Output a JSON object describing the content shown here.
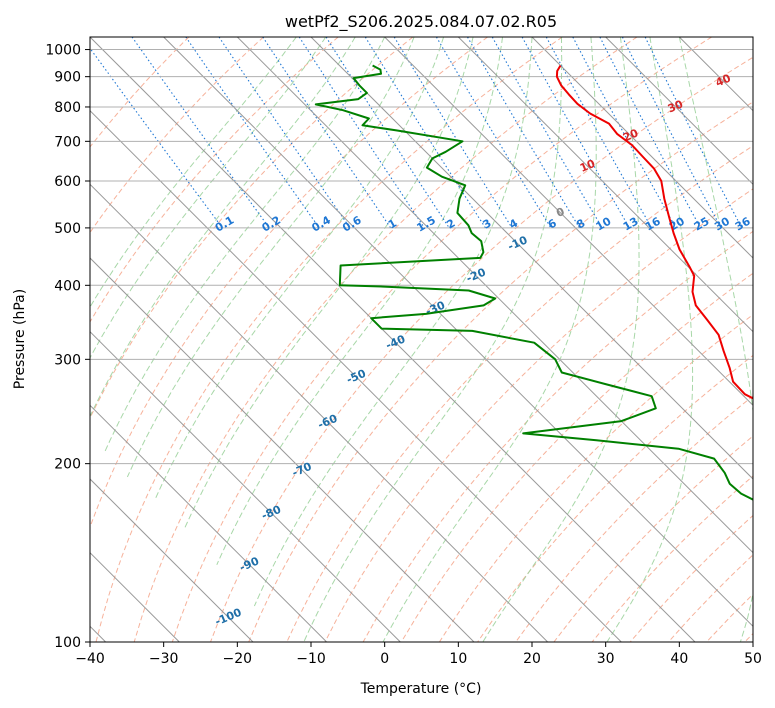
{
  "chart_data": {
    "type": "line",
    "title": "wetPf2_S206.2025.084.07.02.R05",
    "xlabel": "Temperature (°C)",
    "ylabel": "Pressure (hPa)",
    "xlim": [
      -40,
      50
    ],
    "ylim": [
      1050,
      100
    ],
    "y_scale": "log",
    "grid": true,
    "x_ticks": [
      -40,
      -30,
      -20,
      -10,
      0,
      10,
      20,
      30,
      40,
      50
    ],
    "y_ticks": [
      100,
      200,
      300,
      400,
      500,
      600,
      700,
      800,
      900,
      1000
    ],
    "x_tick_labels": [
      "−40",
      "−30",
      "−20",
      "−10",
      "0",
      "10",
      "20",
      "30",
      "40",
      "50"
    ],
    "y_tick_labels": [
      "100",
      "200",
      "300",
      "400",
      "500",
      "600",
      "700",
      "800",
      "900",
      "1000"
    ],
    "colors": {
      "temperature": "#ee0000",
      "dewpoint": "#008000",
      "isotherm": "#999999",
      "dry_adiabat": "#f4a58a",
      "moist_adiabat": "#9fd39f",
      "mixing_ratio": "#1f77d4",
      "isotherm_label": "#1f6fa8",
      "dry_label": "#d62728"
    },
    "isotherm_labels": [
      {
        "t": -100,
        "p": 110,
        "text": "-100"
      },
      {
        "t": -90,
        "p": 135,
        "text": "-90"
      },
      {
        "t": -80,
        "p": 165,
        "text": "-80"
      },
      {
        "t": -70,
        "p": 195,
        "text": "-70"
      },
      {
        "t": -60,
        "p": 235,
        "text": "-60"
      },
      {
        "t": -50,
        "p": 280,
        "text": "-50"
      },
      {
        "t": -40,
        "p": 320,
        "text": "-40"
      },
      {
        "t": -30,
        "p": 365,
        "text": "-30"
      },
      {
        "t": -20,
        "p": 415,
        "text": "-20"
      },
      {
        "t": -10,
        "p": 470,
        "text": "-10"
      },
      {
        "t": 0,
        "p": 530,
        "text": "0"
      },
      {
        "t": 10,
        "p": 635,
        "text": "10"
      },
      {
        "t": 20,
        "p": 715,
        "text": "20"
      },
      {
        "t": 30,
        "p": 800,
        "text": "30"
      },
      {
        "t": 40,
        "p": 885,
        "text": "40"
      }
    ],
    "mixing_ratio_labels": [
      "0.1",
      "0.2",
      "0.4",
      "0.6",
      "1",
      "1.5",
      "2",
      "3",
      "4",
      "6",
      "8",
      "10",
      "13",
      "16",
      "20",
      "25",
      "30",
      "36"
    ],
    "mixing_ratio_values": [
      0.1,
      0.2,
      0.4,
      0.6,
      1,
      1.5,
      2,
      3,
      4,
      6,
      8,
      10,
      13,
      16,
      20,
      25,
      30,
      36
    ],
    "mixing_ratio_label_p": 490,
    "series": [
      {
        "key": "temperature",
        "points": [
          [
            20,
            940
          ],
          [
            18.8,
            920
          ],
          [
            18,
            900
          ],
          [
            17.4,
            870
          ],
          [
            17.2,
            840
          ],
          [
            17.1,
            810
          ],
          [
            17.5,
            780
          ],
          [
            18.7,
            750
          ],
          [
            18.4,
            720
          ],
          [
            18.9,
            690
          ],
          [
            18.8,
            660
          ],
          [
            18.7,
            630
          ],
          [
            18.0,
            600
          ],
          [
            16.0,
            560
          ],
          [
            14.1,
            520
          ],
          [
            12.6,
            490
          ],
          [
            11.2,
            460
          ],
          [
            10.2,
            430
          ],
          [
            9.6,
            415
          ],
          [
            7.2,
            390
          ],
          [
            5.8,
            370
          ],
          [
            5.4,
            350
          ],
          [
            4.9,
            330
          ],
          [
            3.4,
            310
          ],
          [
            1.9,
            290
          ],
          [
            0.5,
            275
          ],
          [
            0.4,
            262
          ],
          [
            2.0,
            250
          ],
          [
            5.0,
            240
          ],
          [
            7.2,
            232
          ],
          [
            8.3,
            222
          ],
          [
            8.5,
            212
          ],
          [
            8.3,
            200
          ],
          [
            8.0,
            185
          ],
          [
            7.8,
            170
          ],
          [
            7.9,
            160
          ],
          [
            8.6,
            150
          ],
          [
            8.7,
            140
          ],
          [
            8.6,
            130
          ],
          [
            8.8,
            120
          ],
          [
            9.1,
            112
          ],
          [
            9.6,
            104
          ],
          [
            9.8,
            100
          ]
        ]
      },
      {
        "key": "dewpoint",
        "points": [
          [
            -5.5,
            940
          ],
          [
            -5.0,
            925
          ],
          [
            -5.5,
            910
          ],
          [
            -9.8,
            895
          ],
          [
            -10.0,
            870
          ],
          [
            -10.0,
            845
          ],
          [
            -12.0,
            825
          ],
          [
            -18.5,
            808
          ],
          [
            -15.6,
            790
          ],
          [
            -13.2,
            765
          ],
          [
            -15.0,
            745
          ],
          [
            -11.0,
            730
          ],
          [
            -3.6,
            700
          ],
          [
            -7.3,
            672
          ],
          [
            -10.0,
            655
          ],
          [
            -12.0,
            632
          ],
          [
            -11.2,
            610
          ],
          [
            -9.2,
            590
          ],
          [
            -11.8,
            560
          ],
          [
            -14.0,
            530
          ],
          [
            -14.2,
            505
          ],
          [
            -14.8,
            490
          ],
          [
            -14.6,
            475
          ],
          [
            -15.8,
            455
          ],
          [
            -17.0,
            445
          ],
          [
            -37.0,
            432
          ],
          [
            -39.8,
            400
          ],
          [
            -34.0,
            398
          ],
          [
            -23.0,
            392
          ],
          [
            -20.5,
            380
          ],
          [
            -23.0,
            370
          ],
          [
            -32.0,
            358
          ],
          [
            -40,
            352
          ],
          [
            -40,
            338
          ],
          [
            -28.0,
            335
          ],
          [
            -21.2,
            320
          ],
          [
            -20.6,
            300
          ],
          [
            -21.5,
            285
          ],
          [
            -17.0,
            272
          ],
          [
            -12.5,
            260
          ],
          [
            -13.6,
            248
          ],
          [
            -20.0,
            236
          ],
          [
            -35.0,
            225
          ],
          [
            -26.0,
            219
          ],
          [
            -16.0,
            212
          ],
          [
            -12.5,
            204
          ],
          [
            -13.0,
            193
          ],
          [
            -13.8,
            185
          ],
          [
            -13.6,
            178
          ],
          [
            -12.0,
            170
          ],
          [
            -11.0,
            160
          ],
          [
            -10.0,
            150
          ],
          [
            -8.0,
            138
          ],
          [
            -5.5,
            125
          ],
          [
            -3.0,
            112
          ],
          [
            -1.0,
            103
          ],
          [
            -0.4,
            100
          ]
        ]
      }
    ]
  }
}
